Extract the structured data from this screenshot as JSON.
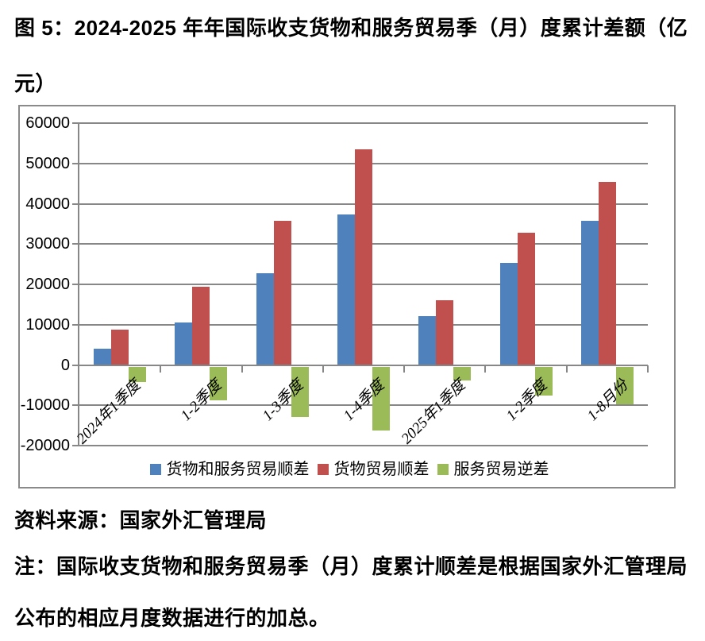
{
  "title": "图 5：2024-2025 年年国际收支货物和服务贸易季（月）度累计差额（亿元）",
  "source": "资料来源：国家外汇管理局",
  "note": "注：国际收支货物和服务贸易季（月）度累计顺差是根据国家外汇管理局公布的相应月度数据进行的加总。",
  "chart_data": {
    "type": "bar",
    "title": "2024-2025年国际收支货物和服务贸易季（月）度累计差额（亿元）",
    "categories": [
      "2024年1季度",
      "1-2季度",
      "1-3季度",
      "1-4季度",
      "2025年1季度",
      "1-2季度",
      "1-8月份"
    ],
    "series": [
      {
        "name": "货物和服务贸易顺差",
        "color": "#4F81BD",
        "values": [
          4100,
          10600,
          22700,
          37300,
          12200,
          25300,
          35700
        ]
      },
      {
        "name": "货物贸易顺差",
        "color": "#C0504D",
        "values": [
          8700,
          19400,
          35800,
          53500,
          16100,
          32800,
          45400
        ]
      },
      {
        "name": "服务贸易逆差",
        "color": "#9BBB59",
        "values": [
          -4300,
          -8700,
          -13000,
          -16200,
          -3800,
          -7500,
          -9800
        ]
      }
    ],
    "xlabel": "",
    "ylabel": "",
    "ylim": [
      -20000,
      60000
    ],
    "ytick_step": 10000,
    "grid": true,
    "gridline_color": "#878787",
    "legend_position": "bottom",
    "x_label_rotation_deg": -45
  }
}
